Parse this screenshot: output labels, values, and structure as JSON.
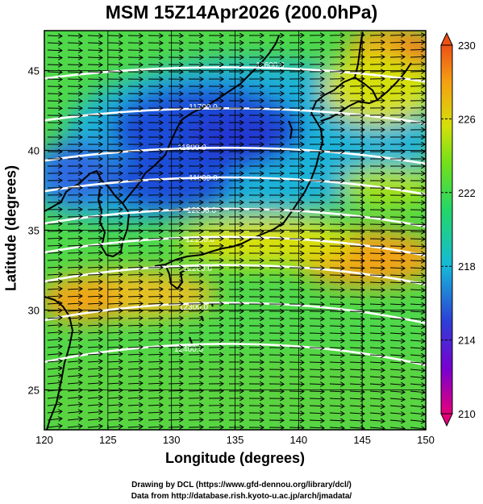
{
  "title": "MSM 15Z14Apr2026 (200.0hPa)",
  "credits": {
    "line1": "Drawing by DCL (https://www.gfd-dennou.org/library/dcl/)",
    "line2": "Data from http://database.rish.kyoto-u.ac.jp/arch/jmadata/"
  },
  "map": {
    "xlabel": "Longitude (degrees)",
    "ylabel": "Latitude  (degrees)",
    "xlim": [
      120,
      150
    ],
    "ylim": [
      22.5,
      47.5
    ],
    "x_ticks": [
      "120",
      "125",
      "130",
      "135",
      "140",
      "145",
      "150"
    ],
    "y_ticks": [
      "25",
      "30",
      "35",
      "40",
      "45"
    ]
  },
  "colorbar": {
    "range": [
      210,
      230
    ],
    "tick_labels": [
      "230",
      "226",
      "222",
      "218",
      "214",
      "210"
    ],
    "colors": [
      "#e4007a",
      "#7a00d0",
      "#2d3fd6",
      "#15b9d8",
      "#22d66a",
      "#72e01a",
      "#d4e00a",
      "#f5a012",
      "#ee5015"
    ]
  },
  "contours": {
    "labels": [
      "11600.0",
      "11700.0",
      "11800.0",
      "11900.0",
      "12000.0",
      "12100.0",
      "12200.0",
      "12300.0",
      "12400.0"
    ]
  }
}
